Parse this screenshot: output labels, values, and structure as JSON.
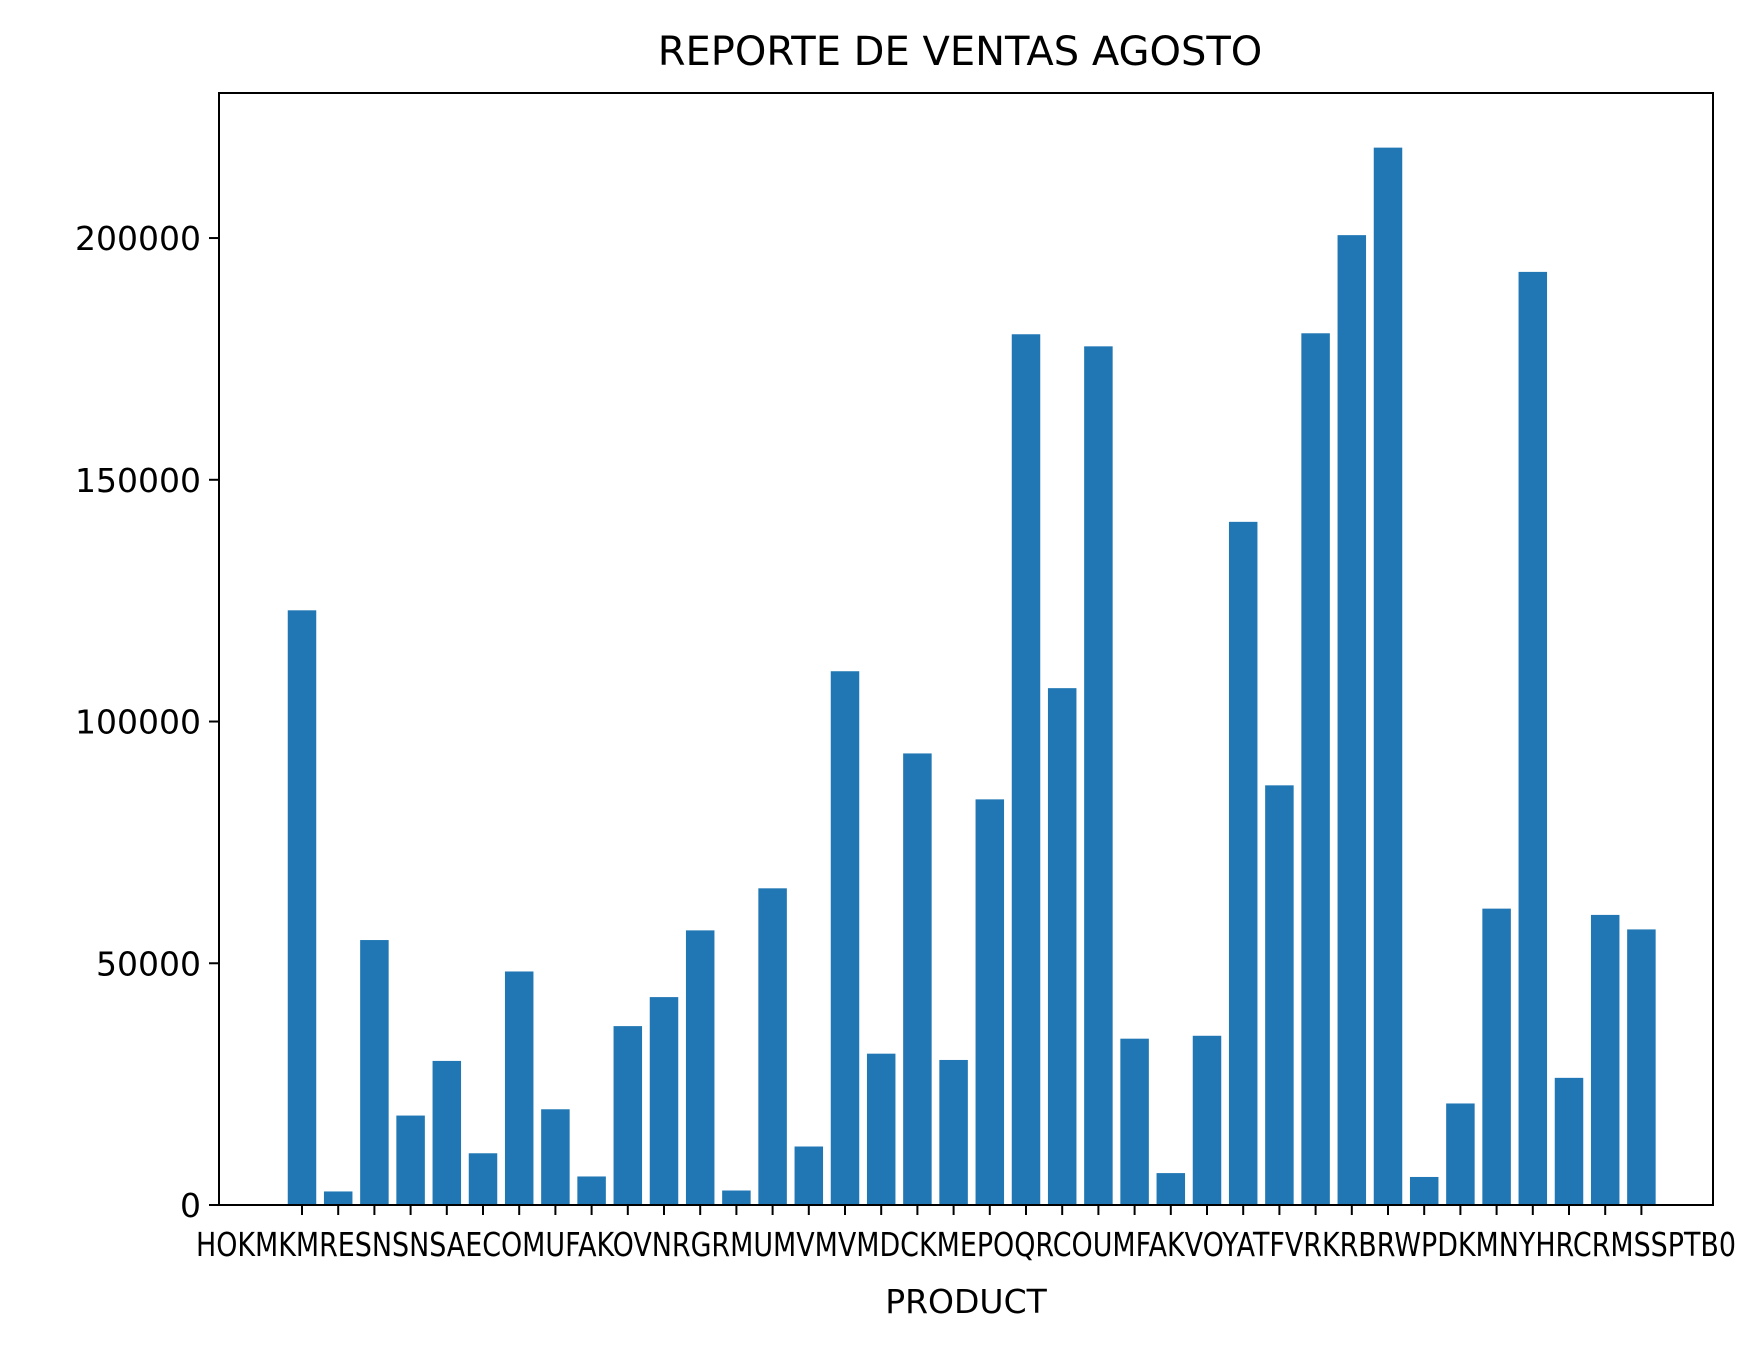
{
  "chart_data": {
    "type": "bar",
    "title": "REPORTE DE VENTAS AGOSTO",
    "xlabel": "PRODUCT",
    "ylabel": "",
    "ylim": [
      0,
      230000
    ],
    "yticks": [
      0,
      50000,
      100000,
      150000,
      200000
    ],
    "grid": false,
    "bar_color": "#2077b4",
    "categories_visible": "HOKMKMRESNSNSAECOMUFAKOVNRGRMUMVMVMDCKMEPOQRCOUMFAKVOYATFVRKRBRWPDKMNYHRCRMSSPTB0",
    "values": [
      123000,
      2800,
      54800,
      18500,
      29800,
      10700,
      48300,
      19800,
      5900,
      37000,
      43000,
      56800,
      3000,
      65500,
      12100,
      110400,
      31300,
      93400,
      30000,
      83900,
      180100,
      106900,
      177600,
      34400,
      6600,
      35000,
      141300,
      86800,
      180300,
      200600,
      218700,
      5800,
      21000,
      61300,
      193000,
      26300,
      60000,
      57000
    ]
  }
}
